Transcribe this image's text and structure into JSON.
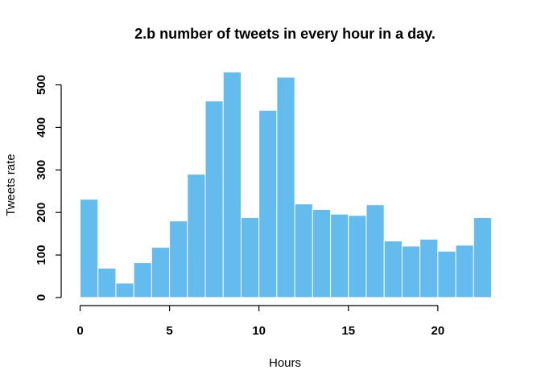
{
  "chart_data": {
    "type": "bar",
    "title": "2.b number of tweets in every hour in a day.",
    "xlabel": "Hours",
    "ylabel": "Tweets rate",
    "bin_edges": [
      0,
      1,
      2,
      3,
      4,
      5,
      6,
      7,
      8,
      9,
      10,
      11,
      12,
      13,
      14,
      15,
      16,
      17,
      18,
      19,
      20,
      21,
      22,
      23
    ],
    "values": [
      231,
      69,
      34,
      82,
      118,
      180,
      290,
      462,
      530,
      188,
      440,
      518,
      220,
      207,
      196,
      193,
      218,
      133,
      121,
      137,
      109,
      123,
      188
    ],
    "xlim": [
      0,
      23
    ],
    "ylim": [
      0,
      530
    ],
    "x_ticks": [
      0,
      5,
      10,
      15,
      20
    ],
    "y_ticks": [
      0,
      100,
      200,
      300,
      400,
      500
    ],
    "bar_color": "#63bbee",
    "grid": false
  }
}
